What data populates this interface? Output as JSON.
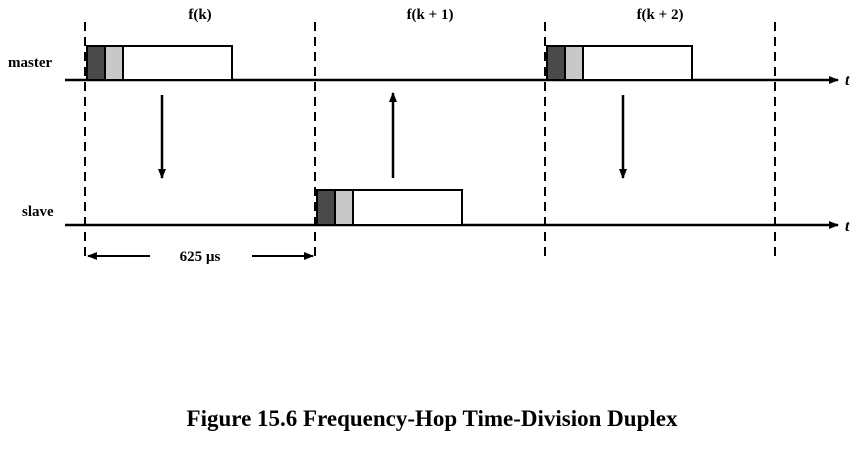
{
  "diagram": {
    "hop_labels": [
      "f(k)",
      "f(k + 1)",
      "f(k + 2)"
    ],
    "rows": {
      "master": "master",
      "slave": "slave"
    },
    "axis_symbol": "t",
    "slot_duration": "625 µs",
    "colors": {
      "dark_segment": "#4a4a4a",
      "light_segment": "#c8c8c8",
      "packet_body": "#ffffff",
      "line": "#000000"
    }
  },
  "caption": "Figure 15.6  Frequency-Hop Time-Division Duplex"
}
